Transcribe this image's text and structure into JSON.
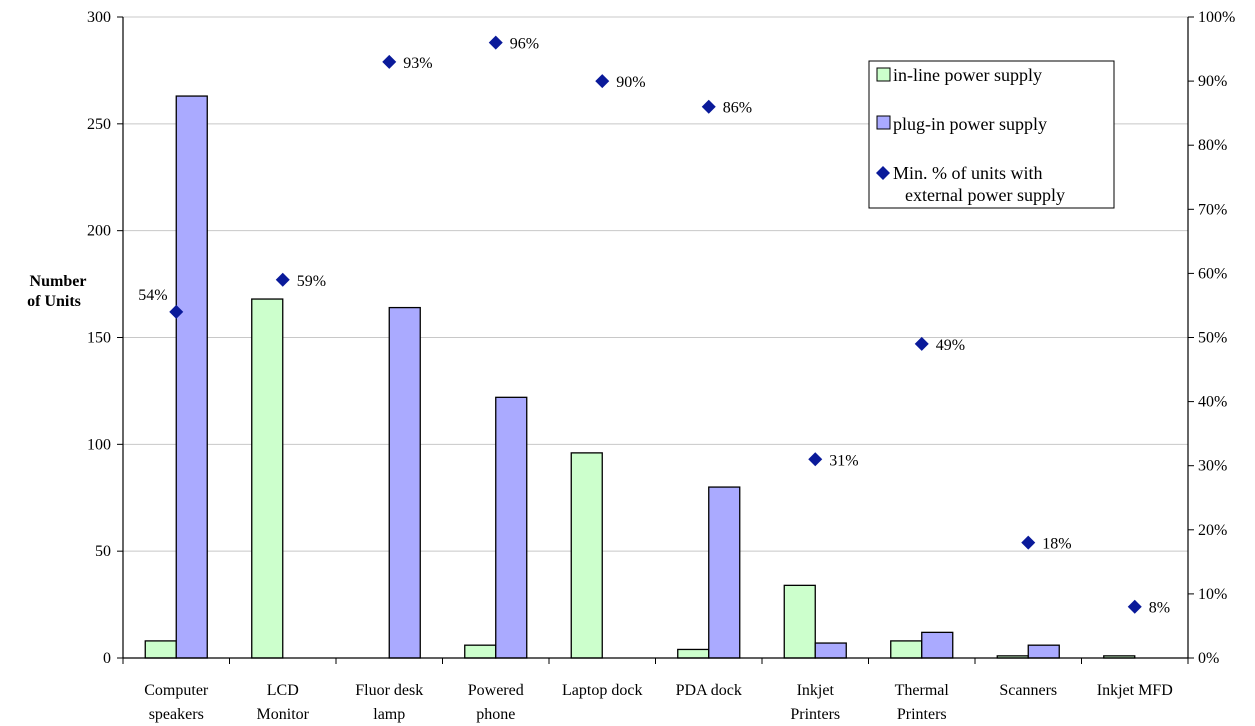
{
  "chart_data": {
    "type": "bar",
    "categories": [
      [
        "Computer",
        "speakers"
      ],
      [
        "LCD",
        "Monitor"
      ],
      [
        "Fluor desk",
        "lamp"
      ],
      [
        "Powered",
        "phone"
      ],
      [
        "Laptop dock"
      ],
      [
        "PDA dock"
      ],
      [
        "Inkjet",
        "Printers"
      ],
      [
        "Thermal",
        "Printers"
      ],
      [
        "Scanners"
      ],
      [
        "Inkjet MFD"
      ]
    ],
    "series": [
      {
        "name": "in-line power supply",
        "color": "#ccffcc",
        "axis": "left",
        "values": [
          8,
          168,
          0,
          6,
          96,
          4,
          34,
          8,
          1,
          1
        ]
      },
      {
        "name": "plug-in power supply",
        "color": "#aaaaff",
        "axis": "left",
        "values": [
          263,
          0,
          164,
          122,
          0,
          80,
          7,
          12,
          6,
          0
        ]
      },
      {
        "name": "Min. % of units with external power supply",
        "legend_lines": [
          "Min. % of units with",
          "external power supply"
        ],
        "color": "#0a1a9a",
        "axis": "right",
        "marker": "diamond",
        "values": [
          54,
          59,
          93,
          96,
          90,
          86,
          31,
          49,
          18,
          8
        ],
        "labels": [
          "54%",
          "59%",
          "93%",
          "96%",
          "90%",
          "86%",
          "31%",
          "49%",
          "18%",
          "8%"
        ]
      }
    ],
    "ylabel": [
      "Number",
      "of Units"
    ],
    "ylim": [
      0,
      300
    ],
    "yticks": [
      0,
      50,
      100,
      150,
      200,
      250,
      300
    ],
    "y2lim": [
      0,
      100
    ],
    "y2ticks": [
      "0%",
      "10%",
      "20%",
      "30%",
      "40%",
      "50%",
      "60%",
      "70%",
      "80%",
      "90%",
      "100%"
    ],
    "gridlines": true,
    "legend_position": "top-right"
  }
}
